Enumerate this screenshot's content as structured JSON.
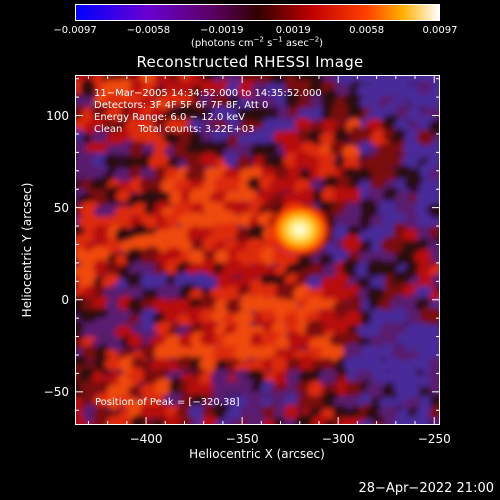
{
  "chart_data": {
    "type": "heatmap",
    "title": "Reconstructed RHESSI Image",
    "xlabel": "Heliocentric X (arcsec)",
    "ylabel": "Heliocentric Y (arcsec)",
    "xlim": [
      -437,
      -247
    ],
    "ylim": [
      -68,
      122
    ],
    "xticks": [
      -400,
      -350,
      -300,
      -250
    ],
    "xtick_labels": [
      "−400",
      "−350",
      "−300",
      "−250"
    ],
    "yticks": [
      -50,
      0,
      50,
      100
    ],
    "ytick_labels": [
      "−50",
      "0",
      "50",
      "100"
    ],
    "colorbar": {
      "colormap": "hot",
      "range": [
        -0.0097,
        0.0097
      ],
      "tick_values": [
        -0.0097,
        -0.0058,
        -0.0019,
        0.0019,
        0.0058,
        0.0097
      ],
      "tick_labels": [
        "−0.0097",
        "−0.0058",
        "−0.0019",
        "0.0019",
        "0.0058",
        "0.0097"
      ],
      "unit_prefix": "(photons cm",
      "unit_exp1": "−2",
      "unit_mid1": " s",
      "unit_exp2": "−1",
      "unit_mid2": " asec",
      "unit_exp3": "−2",
      "unit_suffix": ")"
    },
    "peak": {
      "x": -320,
      "y": 38,
      "label": "Position of Peak = [−320,38]"
    },
    "annotations": [
      "11−Mar−2005 14:34:52.000 to 14:35:52.000",
      "Detectors: 3F 4F 5F 6F 7F 8F, Att 0",
      "Energy Range: 6.0 − 12.0 keV",
      "Clean     Total counts: 3.22E+03"
    ]
  },
  "timestamp": "28−Apr−2022 21:00"
}
